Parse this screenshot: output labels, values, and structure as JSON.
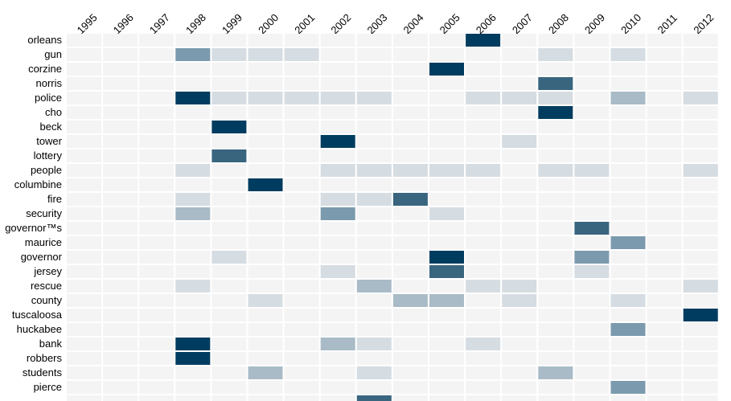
{
  "chart_data": {
    "type": "heatmap",
    "years": [
      "1995",
      "1996",
      "1997",
      "1998",
      "1999",
      "2000",
      "2001",
      "2002",
      "2003",
      "2004",
      "2005",
      "2006",
      "2007",
      "2008",
      "2009",
      "2010",
      "2011",
      "2012"
    ],
    "rows": [
      {
        "label": "orleans",
        "values": [
          0,
          0,
          0,
          0,
          0,
          0,
          0,
          0,
          0,
          0,
          0,
          5,
          0,
          0,
          0,
          0,
          0,
          0
        ]
      },
      {
        "label": "gun",
        "values": [
          0,
          0,
          0,
          3,
          1,
          1,
          1,
          0,
          0,
          0,
          0,
          0,
          0,
          1,
          0,
          1,
          0,
          0
        ]
      },
      {
        "label": "corzine",
        "values": [
          0,
          0,
          0,
          0,
          0,
          0,
          0,
          0,
          0,
          0,
          5,
          0,
          0,
          0,
          0,
          0,
          0,
          0
        ]
      },
      {
        "label": "norris",
        "values": [
          0,
          0,
          0,
          0,
          0,
          0,
          0,
          0,
          0,
          0,
          0,
          0,
          0,
          4,
          0,
          0,
          0,
          0
        ]
      },
      {
        "label": "police",
        "values": [
          0,
          0,
          0,
          5,
          1,
          1,
          1,
          1,
          1,
          0,
          0,
          1,
          1,
          1,
          0,
          2,
          0,
          1
        ]
      },
      {
        "label": "cho",
        "values": [
          0,
          0,
          0,
          0,
          0,
          0,
          0,
          0,
          0,
          0,
          0,
          0,
          0,
          5,
          0,
          0,
          0,
          0
        ]
      },
      {
        "label": "beck",
        "values": [
          0,
          0,
          0,
          0,
          5,
          0,
          0,
          0,
          0,
          0,
          0,
          0,
          0,
          0,
          0,
          0,
          0,
          0
        ]
      },
      {
        "label": "tower",
        "values": [
          0,
          0,
          0,
          0,
          0,
          0,
          0,
          5,
          0,
          0,
          0,
          0,
          1,
          0,
          0,
          0,
          0,
          0
        ]
      },
      {
        "label": "lottery",
        "values": [
          0,
          0,
          0,
          0,
          4,
          0,
          0,
          0,
          0,
          0,
          0,
          0,
          0,
          0,
          0,
          0,
          0,
          0
        ]
      },
      {
        "label": "people",
        "values": [
          0,
          0,
          0,
          1,
          0,
          0,
          0,
          1,
          1,
          1,
          1,
          1,
          0,
          1,
          1,
          0,
          0,
          1
        ]
      },
      {
        "label": "columbine",
        "values": [
          0,
          0,
          0,
          0,
          0,
          5,
          0,
          0,
          0,
          0,
          0,
          0,
          0,
          0,
          0,
          0,
          0,
          0
        ]
      },
      {
        "label": "fire",
        "values": [
          0,
          0,
          0,
          1,
          0,
          0,
          0,
          1,
          1,
          4,
          0,
          0,
          0,
          0,
          0,
          0,
          0,
          0
        ]
      },
      {
        "label": "security",
        "values": [
          0,
          0,
          0,
          2,
          0,
          0,
          0,
          3,
          0,
          0,
          1,
          0,
          0,
          0,
          0,
          0,
          0,
          0
        ]
      },
      {
        "label": "governor™s",
        "values": [
          0,
          0,
          0,
          0,
          0,
          0,
          0,
          0,
          0,
          0,
          0,
          0,
          0,
          0,
          4,
          0,
          0,
          0
        ]
      },
      {
        "label": "maurice",
        "values": [
          0,
          0,
          0,
          0,
          0,
          0,
          0,
          0,
          0,
          0,
          0,
          0,
          0,
          0,
          0,
          3,
          0,
          0
        ]
      },
      {
        "label": "governor",
        "values": [
          0,
          0,
          0,
          0,
          1,
          0,
          0,
          0,
          0,
          0,
          5,
          0,
          0,
          0,
          3,
          0,
          0,
          0
        ]
      },
      {
        "label": "jersey",
        "values": [
          0,
          0,
          0,
          0,
          0,
          0,
          0,
          1,
          0,
          0,
          4,
          0,
          0,
          0,
          1,
          0,
          0,
          0
        ]
      },
      {
        "label": "rescue",
        "values": [
          0,
          0,
          0,
          1,
          0,
          0,
          0,
          0,
          2,
          0,
          0,
          1,
          1,
          0,
          0,
          0,
          0,
          1
        ]
      },
      {
        "label": "county",
        "values": [
          0,
          0,
          0,
          0,
          0,
          1,
          0,
          0,
          0,
          2,
          2,
          0,
          1,
          0,
          0,
          1,
          0,
          0
        ]
      },
      {
        "label": "tuscaloosa",
        "values": [
          0,
          0,
          0,
          0,
          0,
          0,
          0,
          0,
          0,
          0,
          0,
          0,
          0,
          0,
          0,
          0,
          0,
          5
        ]
      },
      {
        "label": "huckabee",
        "values": [
          0,
          0,
          0,
          0,
          0,
          0,
          0,
          0,
          0,
          0,
          0,
          0,
          0,
          0,
          0,
          3,
          0,
          0
        ]
      },
      {
        "label": "bank",
        "values": [
          0,
          0,
          0,
          5,
          0,
          0,
          0,
          2,
          1,
          0,
          0,
          1,
          0,
          0,
          0,
          0,
          0,
          0
        ]
      },
      {
        "label": "robbers",
        "values": [
          0,
          0,
          0,
          5,
          0,
          0,
          0,
          0,
          0,
          0,
          0,
          0,
          0,
          0,
          0,
          0,
          0,
          0
        ]
      },
      {
        "label": "students",
        "values": [
          0,
          0,
          0,
          0,
          0,
          2,
          0,
          0,
          1,
          0,
          0,
          0,
          0,
          2,
          0,
          0,
          0,
          0
        ]
      },
      {
        "label": "pierce",
        "values": [
          0,
          0,
          0,
          0,
          0,
          0,
          0,
          0,
          0,
          0,
          0,
          0,
          0,
          0,
          0,
          3,
          0,
          0
        ]
      },
      {
        "label": "",
        "values": [
          0,
          0,
          0,
          0,
          0,
          0,
          0,
          0,
          4,
          0,
          0,
          0,
          0,
          0,
          0,
          0,
          0,
          0
        ]
      }
    ],
    "scale": [
      0,
      5
    ],
    "colors": [
      "#f4f4f5",
      "#e6e9ec",
      "#d5dce2",
      "#a9bbc7",
      "#7b9aad",
      "#39657f",
      "#003c5f"
    ],
    "grid": true
  }
}
